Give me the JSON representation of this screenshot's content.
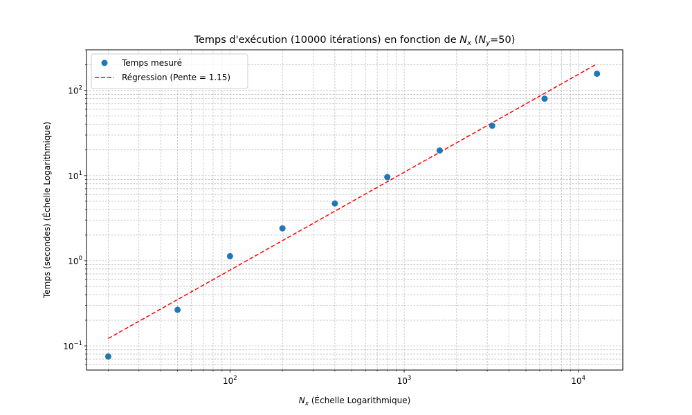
{
  "chart_data": {
    "type": "scatter",
    "title": "Temps d'exécution (10000 itérations) en fonction de N_x (N_y=50)",
    "title_parts": {
      "prefix": "Temps d'exécution (10000 itérations) en fonction de ",
      "nx_main": "N",
      "nx_sub": "x",
      "open_paren": " (",
      "ny_main": "N",
      "ny_sub": "y",
      "suffix": "=50)"
    },
    "xlabel": "N_x (Échelle Logarithmique)",
    "xlabel_parts": {
      "main": "N",
      "sub": "x",
      "rest": " (Échelle Logarithmique)"
    },
    "ylabel": "Temps (secondes) (Échelle Logarithmique)",
    "xscale": "log",
    "yscale": "log",
    "xlim": [
      15,
      18000
    ],
    "ylim": [
      0.052,
      300
    ],
    "grid": "both (major and minor), dashed",
    "legend_placement": "upper-left",
    "x_ticks": [
      {
        "value": 100,
        "base": "10",
        "exp": "2"
      },
      {
        "value": 1000,
        "base": "10",
        "exp": "3"
      },
      {
        "value": 10000,
        "base": "10",
        "exp": "4"
      }
    ],
    "y_ticks": [
      {
        "value": 0.1,
        "base": "10",
        "exp": "−1"
      },
      {
        "value": 1,
        "base": "10",
        "exp": "0"
      },
      {
        "value": 10,
        "base": "10",
        "exp": "1"
      },
      {
        "value": 100,
        "base": "10",
        "exp": "2"
      }
    ],
    "series": [
      {
        "name": "Temps mesuré",
        "kind": "markers",
        "color": "#1f77b4",
        "x": [
          20,
          50,
          100,
          200,
          400,
          800,
          1600,
          3200,
          6400,
          12800
        ],
        "y": [
          0.075,
          0.265,
          1.13,
          2.4,
          4.7,
          9.6,
          19.7,
          38.5,
          80.0,
          157.0
        ]
      },
      {
        "name": "Régression (Pente = 1.15)",
        "kind": "dashed-line",
        "color": "#ff0000",
        "slope": 1.15,
        "x": [
          20,
          12800
        ],
        "y": [
          0.122,
          205.0
        ]
      }
    ]
  }
}
